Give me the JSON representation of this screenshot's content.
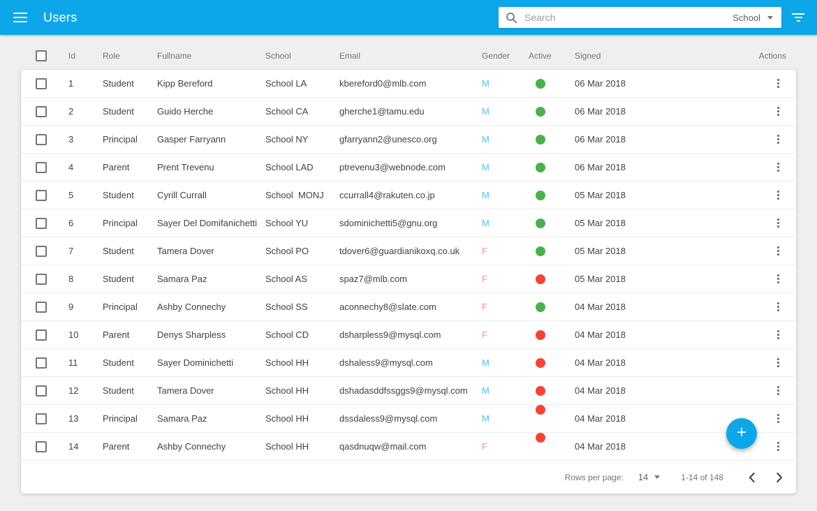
{
  "colors": {
    "accent": "#0da7e9",
    "male": "#4fc3f7",
    "female": "#f48caa",
    "active": "#4caf50",
    "inactive": "#f44336"
  },
  "app_bar": {
    "title": "Users",
    "search": {
      "placeholder": "Search",
      "scope_value": "School"
    }
  },
  "table": {
    "columns": [
      {
        "key": "id",
        "label": "Id"
      },
      {
        "key": "role",
        "label": "Role"
      },
      {
        "key": "fullname",
        "label": "Fullname"
      },
      {
        "key": "school",
        "label": "School"
      },
      {
        "key": "email",
        "label": "Email"
      },
      {
        "key": "gender",
        "label": "Gender"
      },
      {
        "key": "active",
        "label": "Active"
      },
      {
        "key": "signed",
        "label": "Signed"
      },
      {
        "key": "actions",
        "label": "Actions"
      }
    ],
    "rows": [
      {
        "id": "1",
        "role": "Student",
        "fullname": "Kipp Bereford",
        "school": "School LA",
        "email": "kbereford0@mlb.com",
        "gender": "M",
        "active": true,
        "signed": "06 Mar 2018",
        "dot_raised": false
      },
      {
        "id": "2",
        "role": "Student",
        "fullname": "Guido Herche",
        "school": "School CA",
        "email": "gherche1@tamu.edu",
        "gender": "M",
        "active": true,
        "signed": "06 Mar 2018",
        "dot_raised": false
      },
      {
        "id": "3",
        "role": "Principal",
        "fullname": "Gasper Farryann",
        "school": "School NY",
        "email": "gfarryann2@unesco.org",
        "gender": "M",
        "active": true,
        "signed": "06 Mar 2018",
        "dot_raised": false
      },
      {
        "id": "4",
        "role": "Parent",
        "fullname": "Prent Trevenu",
        "school": "School LAD",
        "email": "ptrevenu3@webnode.com",
        "gender": "M",
        "active": true,
        "signed": "06 Mar 2018",
        "dot_raised": false
      },
      {
        "id": "5",
        "role": "Student",
        "fullname": "Cyrill Currall",
        "school": "School  MONJ",
        "email": "ccurrall4@rakuten.co.jp",
        "gender": "M",
        "active": true,
        "signed": "05 Mar 2018",
        "dot_raised": false
      },
      {
        "id": "6",
        "role": "Principal",
        "fullname": "Sayer Del Domifanichetti",
        "school": "School YU",
        "email": "sdominichetti5@gnu.org",
        "gender": "M",
        "active": true,
        "signed": "05 Mar 2018",
        "dot_raised": false
      },
      {
        "id": "7",
        "role": "Student",
        "fullname": "Tamera Dover",
        "school": "School PO",
        "email": "tdover6@guardianikoxq.co.uk",
        "gender": "F",
        "active": true,
        "signed": "05 Mar 2018",
        "dot_raised": false
      },
      {
        "id": "8",
        "role": "Student",
        "fullname": "Samara Paz",
        "school": "School AS",
        "email": "spaz7@mlb.com",
        "gender": "F",
        "active": false,
        "signed": "05 Mar 2018",
        "dot_raised": false
      },
      {
        "id": "9",
        "role": "Principal",
        "fullname": "Ashby Connechy",
        "school": "School SS",
        "email": "aconnechy8@slate.com",
        "gender": "F",
        "active": true,
        "signed": "04 Mar 2018",
        "dot_raised": false
      },
      {
        "id": "10",
        "role": "Parent",
        "fullname": "Denys Sharpless",
        "school": "School CD",
        "email": "dsharpless9@mysql.com",
        "gender": "F",
        "active": false,
        "signed": "04 Mar 2018",
        "dot_raised": false
      },
      {
        "id": "11",
        "role": "Student",
        "fullname": "Sayer Dominichetti",
        "school": "School HH",
        "email": "dshaless9@mysql.com",
        "gender": "M",
        "active": false,
        "signed": "04 Mar 2018",
        "dot_raised": false
      },
      {
        "id": "12",
        "role": "Student",
        "fullname": "Tamera Dover",
        "school": "School HH",
        "email": "dshadasddfssggs9@mysql.com",
        "gender": "M",
        "active": false,
        "signed": "04 Mar 2018",
        "dot_raised": false
      },
      {
        "id": "13",
        "role": "Principal",
        "fullname": "Samara Paz",
        "school": "School HH",
        "email": "dssdaless9@mysql.com",
        "gender": "M",
        "active": false,
        "signed": "04 Mar 2018",
        "dot_raised": true
      },
      {
        "id": "14",
        "role": "Parent",
        "fullname": "Ashby Connechy",
        "school": "School HH",
        "email": "qasdnuqw@mail.com",
        "gender": "F",
        "active": false,
        "signed": "04 Mar 2018",
        "dot_raised": true
      }
    ]
  },
  "footer": {
    "rows_per_page_label": "Rows per page:",
    "rows_per_page_value": "14",
    "range_label": "1-14 of 148"
  },
  "fab": {
    "icon": "+"
  }
}
